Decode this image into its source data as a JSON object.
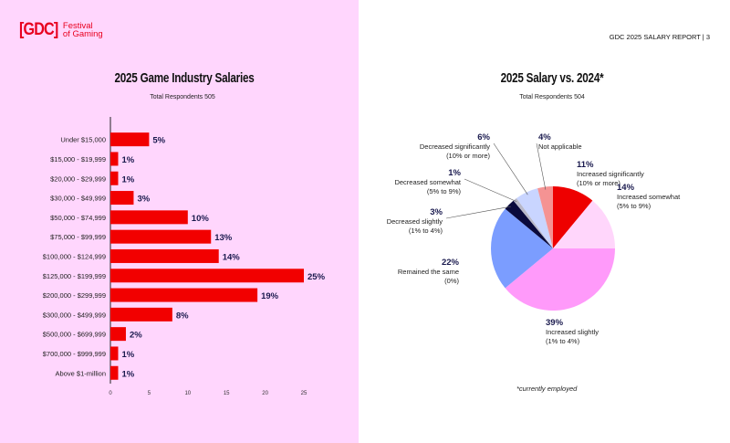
{
  "header": {
    "logo_bracket": "[GDC]",
    "logo_line1": "Festival",
    "logo_line2": "of Gaming",
    "report_label": "GDC 2025 SALARY REPORT | 3"
  },
  "chart_data": [
    {
      "type": "bar",
      "orientation": "horizontal",
      "title": "2025 Game Industry Salaries",
      "subtitle": "Total Respondents 505",
      "categories": [
        "Under $15,000",
        "$15,000 - $19,999",
        "$20,000 - $29,999",
        "$30,000 - $49,999",
        "$50,000 - $74,999",
        "$75,000 - $99,999",
        "$100,000 - $124,999",
        "$125,000 - $199,999",
        "$200,000 - $299,999",
        "$300,000 - $499,999",
        "$500,000 - $699,999",
        "$700,000 - $999,999",
        "Above $1-million"
      ],
      "values": [
        5,
        1,
        1,
        3,
        10,
        13,
        14,
        25,
        19,
        8,
        2,
        1,
        1
      ],
      "labels": [
        "5%",
        "1%",
        "1%",
        "3%",
        "10%",
        "13%",
        "14%",
        "25%",
        "19%",
        "8%",
        "2%",
        "1%",
        "1%"
      ],
      "xticks": [
        0,
        5,
        10,
        15,
        20,
        25
      ],
      "xlim": [
        0,
        25
      ],
      "bar_color": "#f20000",
      "label_color": "#1a1a4e"
    },
    {
      "type": "pie",
      "title": "2025 Salary vs. 2024*",
      "subtitle": "Total Respondents 504",
      "footnote": "*currently employed",
      "slices": [
        {
          "pct": "11%",
          "label": "Increased significantly",
          "sub": "(10% or more)",
          "value": 11,
          "color": "#ee0000"
        },
        {
          "pct": "14%",
          "label": "Increased somewhat",
          "sub": "(5% to 9%)",
          "value": 14,
          "color": "#ffd6fb"
        },
        {
          "pct": "39%",
          "label": "Increased slightly",
          "sub": "(1% to 4%)",
          "value": 39,
          "color": "#ff9afa"
        },
        {
          "pct": "22%",
          "label": "Remained the same",
          "sub": "(0%)",
          "value": 22,
          "color": "#7b9dff"
        },
        {
          "pct": "3%",
          "label": "Decreased slightly",
          "sub": "(1% to 4%)",
          "value": 3,
          "color": "#0a0a3c"
        },
        {
          "pct": "1%",
          "label": "Decreased somewhat",
          "sub": "(5% to 9%)",
          "value": 1,
          "color": "#b8b8c8"
        },
        {
          "pct": "6%",
          "label": "Decreased significantly",
          "sub": "(10% or more)",
          "value": 6,
          "color": "#c9d5ff"
        },
        {
          "pct": "4%",
          "label": "Not applicable",
          "sub": "",
          "value": 4,
          "color": "#f59393"
        }
      ]
    }
  ]
}
